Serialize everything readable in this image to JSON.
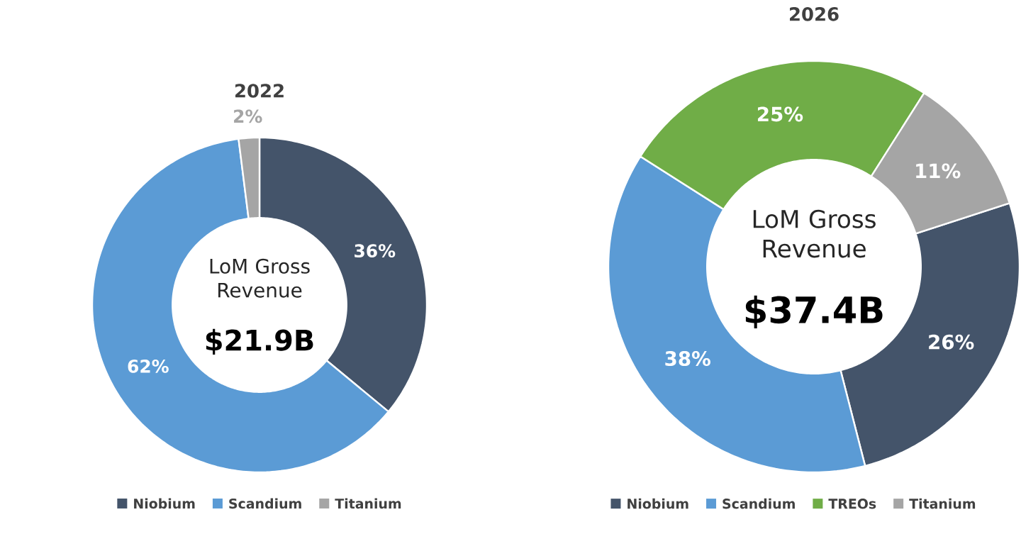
{
  "chart_data": [
    {
      "type": "donut",
      "title": "2022",
      "categories": [
        "Niobium",
        "Scandium",
        "Titanium"
      ],
      "values": [
        36,
        62,
        2
      ],
      "colors": [
        "#44546a",
        "#5b9bd5",
        "#a5a5a5"
      ],
      "value_labels": [
        "36%",
        "62%",
        "2%"
      ],
      "legend": "bottom",
      "annotations": [
        "LoM Gross Revenue",
        "$21.9B"
      ]
    },
    {
      "type": "donut",
      "title": "2026",
      "categories": [
        "Niobium",
        "Scandium",
        "TREOs",
        "Titanium"
      ],
      "values": [
        26,
        38,
        25,
        11
      ],
      "colors": [
        "#44546a",
        "#5b9bd5",
        "#70ad47",
        "#a5a5a5"
      ],
      "value_labels": [
        "26%",
        "38%",
        "25%",
        "11%"
      ],
      "legend": "bottom",
      "annotations": [
        "LoM Gross Revenue",
        "$37.4B"
      ]
    }
  ]
}
